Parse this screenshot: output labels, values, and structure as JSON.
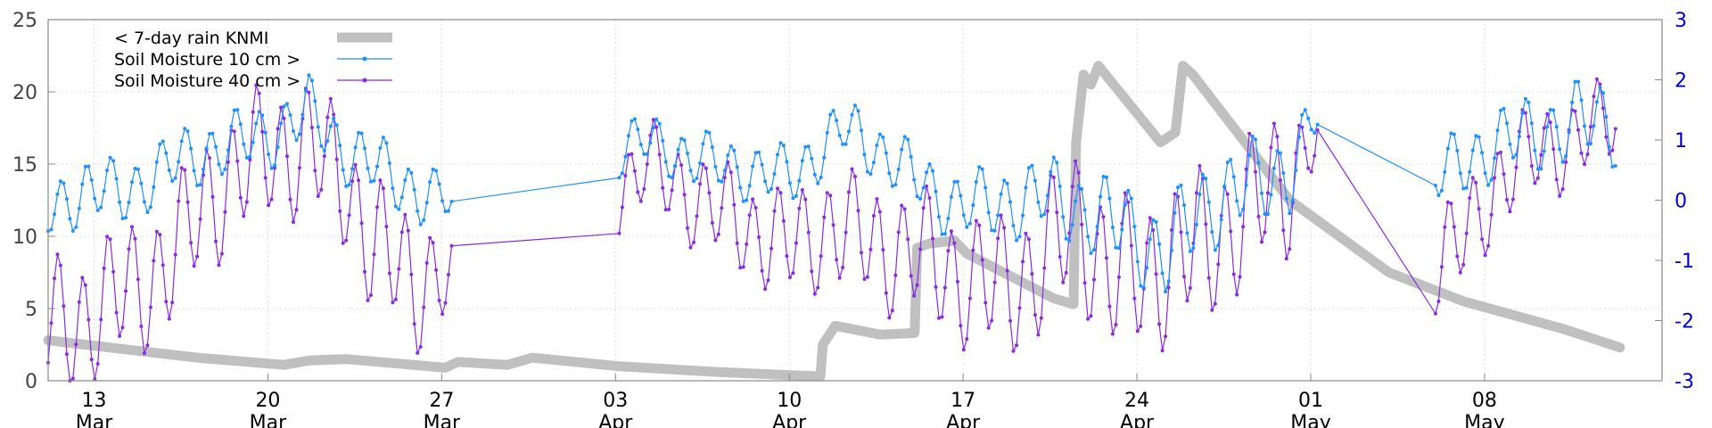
{
  "chart_data": {
    "type": "line",
    "title": "",
    "xlabel": "",
    "ylabel": "",
    "xlim": [
      0,
      65
    ],
    "ylim": [
      0,
      25
    ],
    "ylim_right": [
      -3,
      3
    ],
    "grid": true,
    "legend_position": "top-left",
    "y_ticks": [
      "0",
      "5",
      "10",
      "15",
      "20",
      "25"
    ],
    "y_right_ticks": [
      "-3",
      "-2",
      "-1",
      "0",
      "1",
      "2",
      "3"
    ],
    "x_ticks": [
      {
        "x": 1.85,
        "day": "13",
        "month": "Mar"
      },
      {
        "x": 8.85,
        "day": "20",
        "month": "Mar"
      },
      {
        "x": 15.85,
        "day": "27",
        "month": "Mar"
      },
      {
        "x": 22.85,
        "day": "03",
        "month": "Apr"
      },
      {
        "x": 29.85,
        "day": "10",
        "month": "Apr"
      },
      {
        "x": 36.85,
        "day": "17",
        "month": "Apr"
      },
      {
        "x": 43.85,
        "day": "24",
        "month": "Apr"
      },
      {
        "x": 50.85,
        "day": "01",
        "month": "May"
      },
      {
        "x": 57.85,
        "day": "08",
        "month": "May"
      }
    ],
    "series": [
      {
        "name": "< 7-day rain KNMI",
        "color": "#c0c0c0",
        "axis": "left",
        "gaps": [],
        "points": [
          [
            0,
            2.8
          ],
          [
            3,
            2.2
          ],
          [
            6,
            1.6
          ],
          [
            9.5,
            1.1
          ],
          [
            10.5,
            1.4
          ],
          [
            12,
            1.5
          ],
          [
            16,
            0.9
          ],
          [
            16.5,
            1.3
          ],
          [
            18.5,
            1.1
          ],
          [
            19.5,
            1.6
          ],
          [
            23,
            1.0
          ],
          [
            27,
            0.6
          ],
          [
            31.1,
            0.3
          ],
          [
            31.2,
            2.5
          ],
          [
            31.7,
            3.8
          ],
          [
            33.5,
            3.2
          ],
          [
            34.9,
            3.3
          ],
          [
            35.0,
            9.2
          ],
          [
            35.5,
            9.5
          ],
          [
            36.5,
            9.7
          ],
          [
            37,
            8.8
          ],
          [
            40.5,
            5.7
          ],
          [
            41.3,
            5.3
          ],
          [
            41.4,
            16.5
          ],
          [
            41.7,
            21.2
          ],
          [
            42,
            20.5
          ],
          [
            42.3,
            21.8
          ],
          [
            44.8,
            16.5
          ],
          [
            45.4,
            17.2
          ],
          [
            45.7,
            21.8
          ],
          [
            46.1,
            21.2
          ],
          [
            50,
            12.5
          ],
          [
            54,
            7.5
          ],
          [
            57,
            5.5
          ],
          [
            61,
            3.6
          ],
          [
            63.3,
            2.3
          ]
        ]
      },
      {
        "name": "Soil Moisture 10 cm >",
        "color": "#1e90ff",
        "axis": "right",
        "style": "linespoints",
        "gaps": [
          [
            16.3,
            22.9
          ],
          [
            51.2,
            55.8
          ]
        ],
        "base": [
          [
            0,
            -0.2
          ],
          [
            1.5,
            0.2
          ],
          [
            3,
            0.1
          ],
          [
            5,
            0.6
          ],
          [
            7,
            0.9
          ],
          [
            9,
            1.1
          ],
          [
            10.5,
            1.5
          ],
          [
            12,
            0.8
          ],
          [
            13.5,
            0.5
          ],
          [
            15,
            0.1
          ],
          [
            16.3,
            0.0
          ],
          [
            22.9,
            0.8
          ],
          [
            24,
            1.0
          ],
          [
            26,
            0.7
          ],
          [
            28,
            0.5
          ],
          [
            30,
            0.4
          ],
          [
            32,
            1.2
          ],
          [
            34,
            0.7
          ],
          [
            36,
            0.0
          ],
          [
            38,
            -0.1
          ],
          [
            40,
            0.1
          ],
          [
            42,
            -0.2
          ],
          [
            43.5,
            -0.5
          ],
          [
            45,
            -0.9
          ],
          [
            46.5,
            -0.1
          ],
          [
            48,
            0.2
          ],
          [
            50,
            0.5
          ],
          [
            51.2,
            1.5
          ],
          [
            55.8,
            0.4
          ],
          [
            57,
            0.6
          ],
          [
            58.5,
            1.0
          ],
          [
            60,
            1.1
          ],
          [
            61.5,
            1.3
          ],
          [
            63.2,
            1.3
          ]
        ],
        "amp": [
          [
            0,
            0.6
          ],
          [
            15,
            0.6
          ],
          [
            16.3,
            0.4
          ],
          [
            22.9,
            0.5
          ],
          [
            36,
            0.6
          ],
          [
            42,
            0.8
          ],
          [
            45,
            0.9
          ],
          [
            50,
            0.8
          ],
          [
            51.2,
            0.4
          ],
          [
            55.8,
            0.6
          ],
          [
            63.2,
            0.8
          ]
        ]
      },
      {
        "name": "Soil Moisture 40 cm >",
        "color": "#8a2be2",
        "axis": "right",
        "style": "linespoints",
        "gaps": [
          [
            16.3,
            22.9
          ],
          [
            51.2,
            55.8
          ]
        ],
        "base": [
          [
            0,
            -2.2
          ],
          [
            3,
            -1.6
          ],
          [
            5,
            -1.0
          ],
          [
            6.5,
            0.1
          ],
          [
            8,
            0.5
          ],
          [
            9,
            0.9
          ],
          [
            10.5,
            0.8
          ],
          [
            12,
            0.4
          ],
          [
            13,
            -0.8
          ],
          [
            15,
            -1.3
          ],
          [
            16.3,
            -1.3
          ],
          [
            22.9,
            0.1
          ],
          [
            24,
            0.6
          ],
          [
            25.5,
            0.2
          ],
          [
            27,
            -0.2
          ],
          [
            28.5,
            -0.5
          ],
          [
            30,
            -0.8
          ],
          [
            31.5,
            -0.4
          ],
          [
            33,
            -0.7
          ],
          [
            35,
            -0.9
          ],
          [
            36.5,
            -1.2
          ],
          [
            38,
            -1.5
          ],
          [
            40,
            -1.1
          ],
          [
            41.5,
            -0.3
          ],
          [
            43,
            -1.4
          ],
          [
            44.5,
            -1.1
          ],
          [
            46,
            -0.9
          ],
          [
            48,
            -0.3
          ],
          [
            50,
            0.4
          ],
          [
            51.2,
            1.2
          ],
          [
            55.8,
            -1.0
          ],
          [
            57,
            -0.7
          ],
          [
            58.5,
            0.4
          ],
          [
            60,
            0.8
          ],
          [
            61.5,
            1.0
          ],
          [
            63.2,
            1.4
          ]
        ],
        "amp": [
          [
            0,
            1.3
          ],
          [
            15,
            1.3
          ],
          [
            16.3,
            0.8
          ],
          [
            22.9,
            0.8
          ],
          [
            40,
            1.4
          ],
          [
            45,
            1.5
          ],
          [
            50,
            1.4
          ],
          [
            51.2,
            0.5
          ],
          [
            55.8,
            1.0
          ],
          [
            63.2,
            0.8
          ]
        ]
      }
    ]
  },
  "legend": [
    {
      "label": "< 7-day rain KNMI",
      "color": "#c0c0c0",
      "style": "thick"
    },
    {
      "label": "Soil Moisture 10 cm >",
      "color": "#1e90ff",
      "style": "linespoints"
    },
    {
      "label": "Soil Moisture 40 cm >",
      "color": "#8a2be2",
      "style": "linespoints"
    }
  ]
}
